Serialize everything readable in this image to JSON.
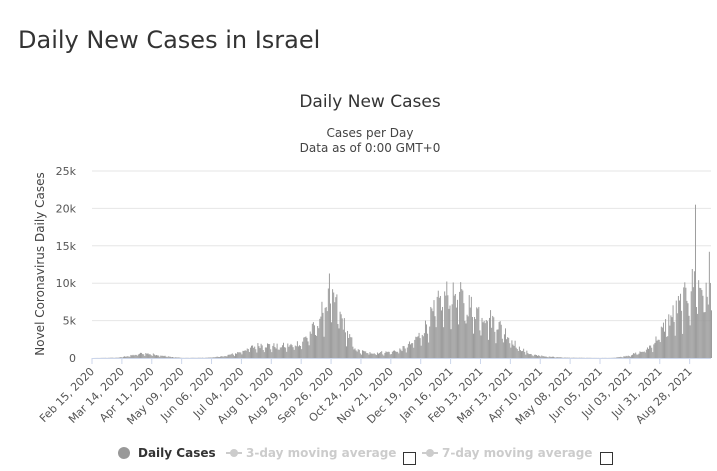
{
  "page": {
    "title": "Daily New Cases in Israel"
  },
  "chart_data": {
    "type": "bar",
    "title": "Daily New Cases",
    "subtitle": "Cases per Day",
    "subtitle2": "Data as of 0:00 GMT+0",
    "xlabel": "",
    "ylabel": "Novel Coronavirus Daily Cases",
    "ylim": [
      0,
      25000
    ],
    "yticks": [
      0,
      5000,
      10000,
      15000,
      20000,
      25000
    ],
    "ytick_labels": [
      "0",
      "5k",
      "10k",
      "15k",
      "20k",
      "25k"
    ],
    "x_start": "2020-02-15",
    "x_end": "2021-09-17",
    "xtick_dates": [
      "2020-02-15",
      "2020-03-14",
      "2020-04-11",
      "2020-05-09",
      "2020-06-06",
      "2020-07-04",
      "2020-08-01",
      "2020-08-29",
      "2020-09-26",
      "2020-10-24",
      "2020-11-21",
      "2020-12-19",
      "2021-01-16",
      "2021-02-13",
      "2021-03-13",
      "2021-04-10",
      "2021-05-08",
      "2021-06-05",
      "2021-07-03",
      "2021-07-31",
      "2021-08-28"
    ],
    "xtick_labels": [
      "Feb 15, 2020",
      "Mar 14, 2020",
      "Apr 11, 2020",
      "May 09, 2020",
      "Jun 06, 2020",
      "Jul 04, 2020",
      "Aug 01, 2020",
      "Aug 29, 2020",
      "Sep 26, 2020",
      "Oct 24, 2020",
      "Nov 21, 2020",
      "Dec 19, 2020",
      "Jan 16, 2021",
      "Feb 13, 2021",
      "Mar 13, 2021",
      "Apr 10, 2021",
      "May 08, 2021",
      "Jun 05, 2021",
      "Jul 03, 2021",
      "Jul 31, 2021",
      "Aug 28, 2021"
    ],
    "series": [
      {
        "name": "Daily Cases",
        "color": "#999999",
        "trend_points": [
          [
            "2020-02-15",
            0
          ],
          [
            "2020-03-10",
            50
          ],
          [
            "2020-03-25",
            400
          ],
          [
            "2020-04-02",
            650
          ],
          [
            "2020-04-15",
            450
          ],
          [
            "2020-04-28",
            150
          ],
          [
            "2020-05-10",
            20
          ],
          [
            "2020-06-01",
            40
          ],
          [
            "2020-06-15",
            200
          ],
          [
            "2020-06-28",
            600
          ],
          [
            "2020-07-08",
            1200
          ],
          [
            "2020-07-22",
            1800
          ],
          [
            "2020-08-05",
            1600
          ],
          [
            "2020-08-20",
            1700
          ],
          [
            "2020-08-29",
            2200
          ],
          [
            "2020-09-05",
            3200
          ],
          [
            "2020-09-12",
            4500
          ],
          [
            "2020-09-18",
            6500
          ],
          [
            "2020-09-24",
            8000
          ],
          [
            "2020-09-30",
            7500
          ],
          [
            "2020-10-05",
            5500
          ],
          [
            "2020-10-12",
            3000
          ],
          [
            "2020-10-20",
            1000
          ],
          [
            "2020-11-01",
            700
          ],
          [
            "2020-11-20",
            800
          ],
          [
            "2020-12-01",
            1200
          ],
          [
            "2020-12-10",
            2000
          ],
          [
            "2020-12-20",
            3500
          ],
          [
            "2020-12-28",
            5500
          ],
          [
            "2021-01-05",
            7500
          ],
          [
            "2021-01-12",
            8500
          ],
          [
            "2021-01-20",
            8800
          ],
          [
            "2021-01-28",
            7800
          ],
          [
            "2021-02-05",
            6800
          ],
          [
            "2021-02-15",
            6000
          ],
          [
            "2021-02-25",
            5000
          ],
          [
            "2021-03-05",
            4000
          ],
          [
            "2021-03-12",
            2800
          ],
          [
            "2021-03-20",
            1400
          ],
          [
            "2021-04-01",
            500
          ],
          [
            "2021-04-15",
            200
          ],
          [
            "2021-05-01",
            60
          ],
          [
            "2021-06-01",
            15
          ],
          [
            "2021-06-15",
            20
          ],
          [
            "2021-06-25",
            150
          ],
          [
            "2021-07-03",
            400
          ],
          [
            "2021-07-15",
            900
          ],
          [
            "2021-07-25",
            2000
          ],
          [
            "2021-08-05",
            4500
          ],
          [
            "2021-08-15",
            6500
          ],
          [
            "2021-08-25",
            8500
          ],
          [
            "2021-09-01",
            10500
          ],
          [
            "2021-09-08",
            9500
          ],
          [
            "2021-09-17",
            8500
          ]
        ],
        "peaks": [
          [
            "2020-09-24",
            11300
          ],
          [
            "2020-09-27",
            9200
          ],
          [
            "2021-01-18",
            10100
          ],
          [
            "2021-09-02",
            20500
          ],
          [
            "2021-09-15",
            14200
          ]
        ]
      }
    ],
    "legend": [
      {
        "label": "Daily Cases",
        "active": true
      },
      {
        "label": "3-day moving average",
        "active": false
      },
      {
        "label": "7-day moving average",
        "active": false
      }
    ]
  }
}
